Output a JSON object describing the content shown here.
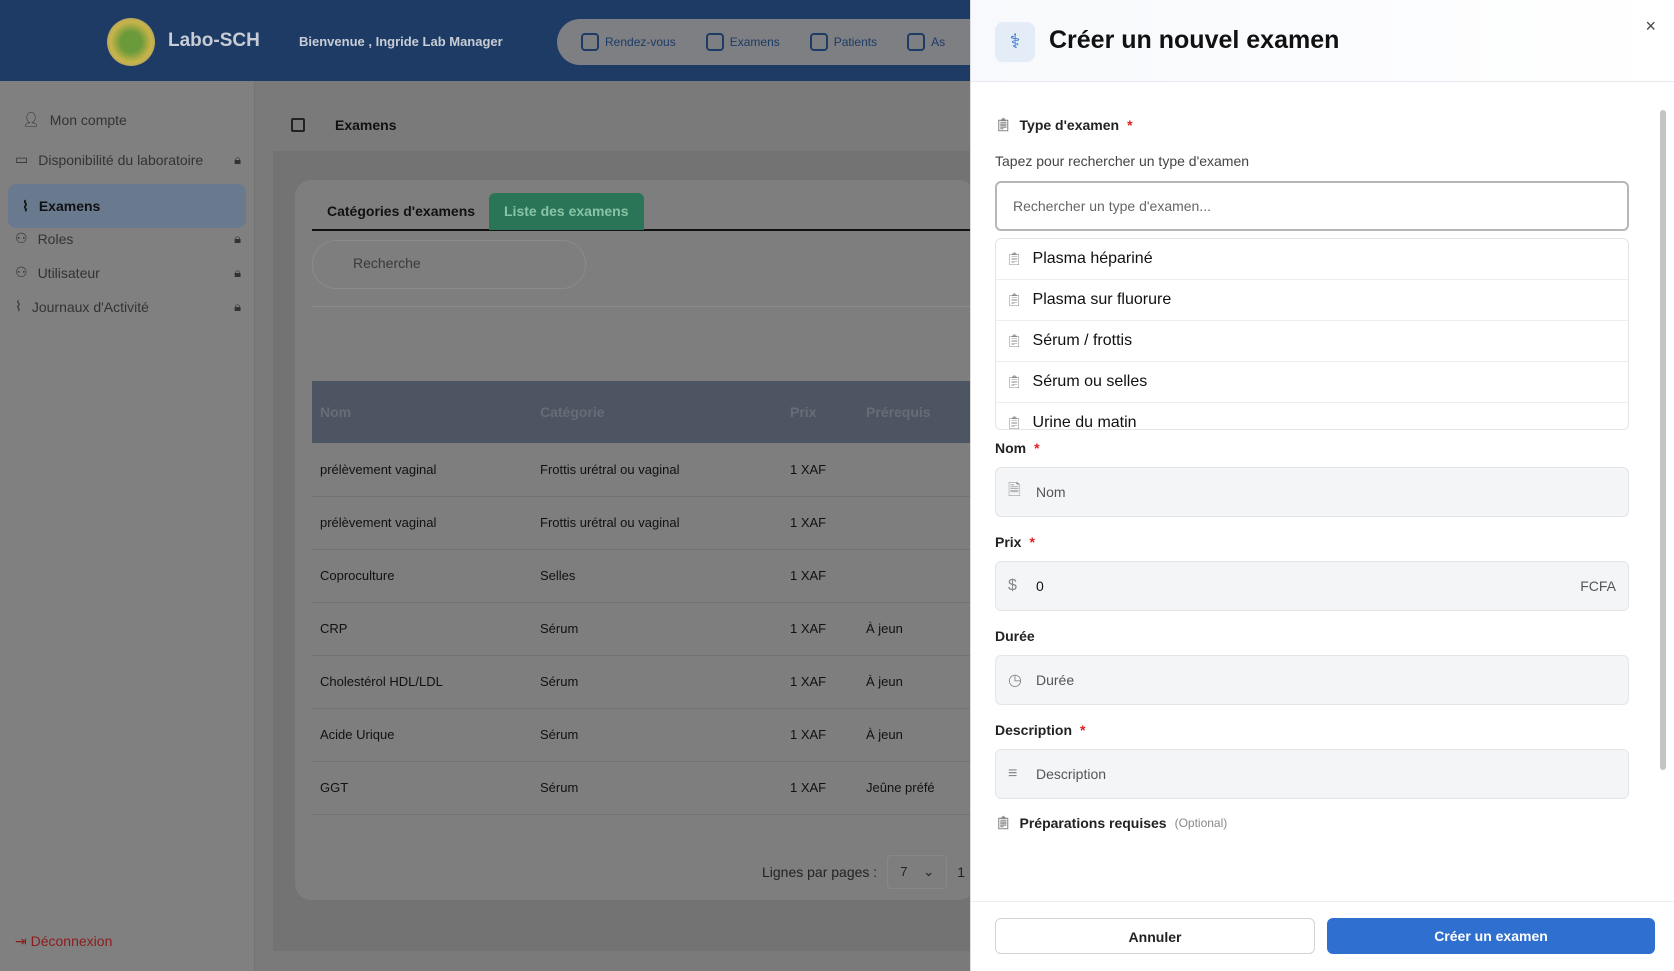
{
  "header": {
    "brand": "Labo-SCH",
    "welcome": "Bienvenue , Ingride Lab Manager",
    "nav": [
      "Rendez-vous",
      "Examens",
      "Patients",
      "As"
    ]
  },
  "sidebar": {
    "items": [
      {
        "label": "Mon compte",
        "locked": false
      },
      {
        "label": "Disponibilité du laboratoire",
        "locked": true
      },
      {
        "label": "Examens",
        "locked": false,
        "active": true
      },
      {
        "label": "Roles",
        "locked": true
      },
      {
        "label": "Utilisateur",
        "locked": true
      },
      {
        "label": "Journaux d'Activité",
        "locked": true
      }
    ],
    "logout": "Déconnexion"
  },
  "main": {
    "breadcrumb": "Examens",
    "tabs": [
      "Catégories d'examens",
      "Liste des examens"
    ],
    "active_tab": 1,
    "search_placeholder": "Recherche",
    "table": {
      "headers": [
        "Nom",
        "Catégorie",
        "Prix",
        "Prérequis"
      ],
      "rows": [
        [
          "prélèvement vaginal",
          "Frottis urétral ou vaginal",
          "1 XAF",
          ""
        ],
        [
          "prélèvement vaginal",
          "Frottis urétral ou vaginal",
          "1 XAF",
          ""
        ],
        [
          "Coproculture",
          "Selles",
          "1 XAF",
          ""
        ],
        [
          "CRP",
          "Sérum",
          "1 XAF",
          "À jeun"
        ],
        [
          "Cholestérol HDL/LDL",
          "Sérum",
          "1 XAF",
          "À jeun"
        ],
        [
          "Acide Urique",
          "Sérum",
          "1 XAF",
          "À jeun"
        ],
        [
          "GGT",
          "Sérum",
          "1 XAF",
          "Jeûne préfé"
        ]
      ]
    },
    "pager": {
      "label": "Lignes par pages :",
      "value": "7",
      "page": "1"
    }
  },
  "modal": {
    "title": "Créer un nouvel examen",
    "close": "×",
    "type_label": "Type d'examen",
    "type_hint": "Tapez pour rechercher un type d'examen",
    "type_placeholder": "Rechercher un type d'examen...",
    "type_options": [
      "Plasma hépariné",
      "Plasma sur fluorure",
      "Sérum / frottis",
      "Sérum ou selles",
      "Urine du matin"
    ],
    "nom_label": "Nom",
    "nom_placeholder": "Nom",
    "prix_label": "Prix",
    "prix_value": "0",
    "prix_unit": "FCFA",
    "duree_label": "Durée",
    "duree_placeholder": "Durée",
    "desc_label": "Description",
    "desc_placeholder": "Description",
    "prep_label": "Préparations requises",
    "prep_optional": "(Optional)",
    "required_mark": "*",
    "cancel": "Annuler",
    "submit": "Créer un examen"
  },
  "colors": {
    "header": "#1e3b66",
    "active_tab": "#2a7558",
    "primary": "#2f6fcf",
    "required": "#dd2222"
  }
}
